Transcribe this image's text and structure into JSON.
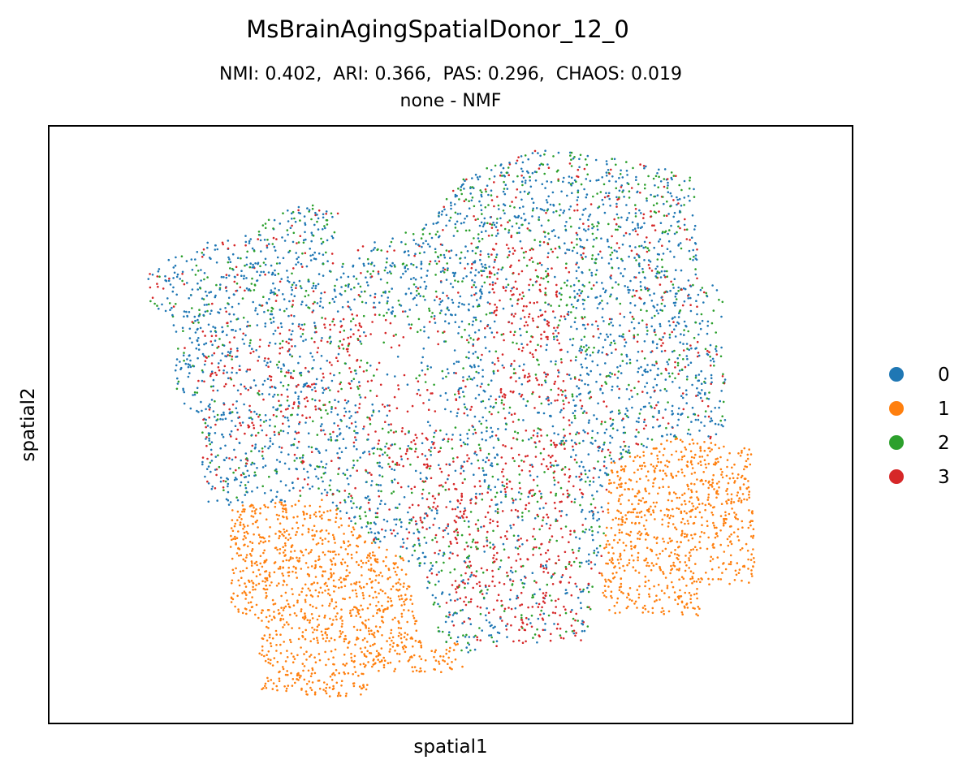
{
  "chart_data": {
    "type": "scatter",
    "title": "MsBrainAgingSpatialDonor_12_0",
    "subtitle_line1": "NMI: 0.402,  ARI: 0.366,  PAS: 0.296,  CHAOS: 0.019",
    "subtitle_line2": "none - NMF",
    "xlabel": "spatial1",
    "ylabel": "spatial2",
    "xticks": [],
    "yticks": [],
    "grid": false,
    "legend_position": "right",
    "series": [
      {
        "name": "0",
        "color": "#1f77b4"
      },
      {
        "name": "1",
        "color": "#ff7f0e"
      },
      {
        "name": "2",
        "color": "#2ca02c"
      },
      {
        "name": "3",
        "color": "#d62728"
      }
    ],
    "note_values": "Individual spot coordinates are not printed on the figure; the point cloud is drawn as a procedural approximation of the visible spatial pattern."
  }
}
